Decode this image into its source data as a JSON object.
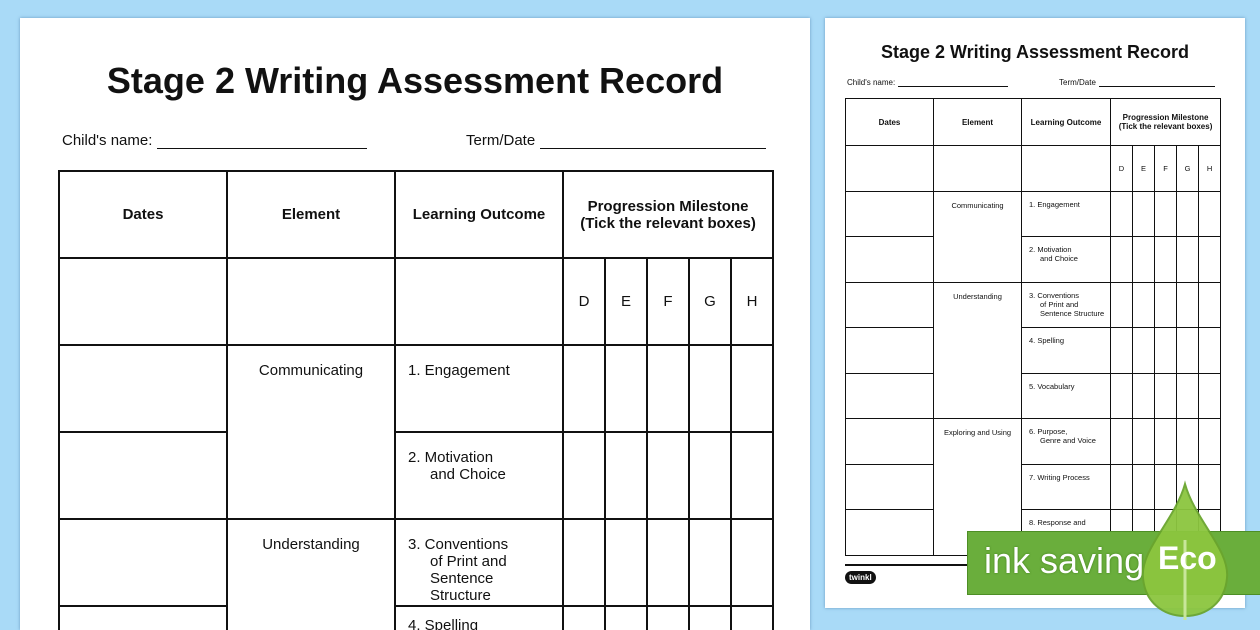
{
  "document": {
    "title": "Stage 2 Writing Assessment Record",
    "childs_name_label": "Child's name:",
    "term_date_label": "Term/Date",
    "headers": {
      "dates": "Dates",
      "element": "Element",
      "learning_outcome": "Learning Outcome",
      "milestone": "Progression Milestone\n(Tick the relevant boxes)"
    },
    "milestone_levels": [
      "D",
      "E",
      "F",
      "G",
      "H"
    ],
    "elements": [
      {
        "name": "Communicating",
        "outcomes": [
          "1.  Engagement",
          "2.  Motivation\nand Choice"
        ]
      },
      {
        "name": "Understanding",
        "outcomes": [
          "3.  Conventions\nof Print and\nSentence Structure",
          "4.  Spelling",
          "5.  Vocabulary"
        ]
      },
      {
        "name": "Exploring and Using",
        "outcomes": [
          "6.  Purpose,\nGenre and Voice",
          "7.  Writing Process",
          "8.  Response and"
        ]
      }
    ],
    "logo": "twinkl"
  },
  "badge": {
    "text": "ink saving",
    "eco": "Eco",
    "color": "#6aae3c",
    "drop_color": "#8cc63f"
  }
}
